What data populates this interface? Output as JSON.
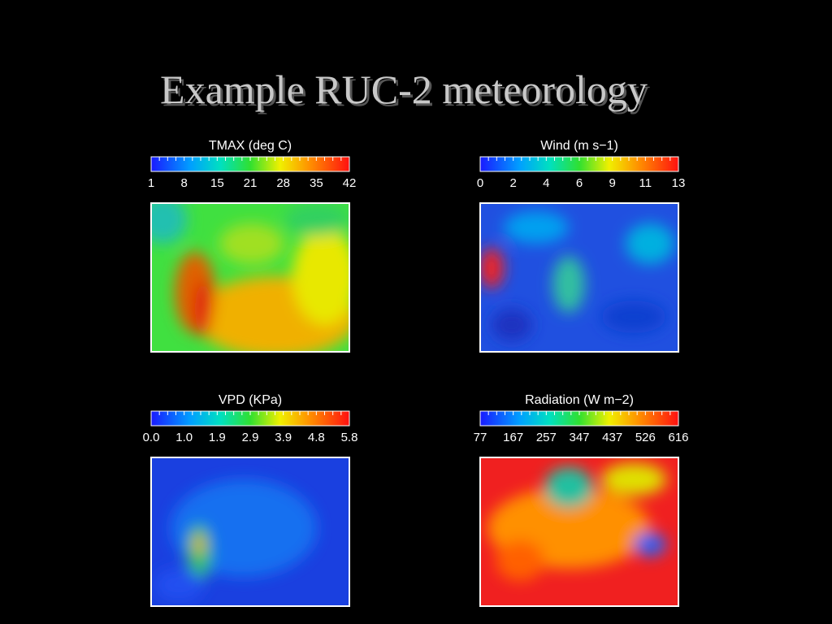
{
  "title": "Example RUC-2 meteorology",
  "panels": [
    {
      "title": "TMAX (deg C)",
      "colorbar_labels": [
        "1",
        "8",
        "15",
        "21",
        "28",
        "35",
        "42"
      ]
    },
    {
      "title": "Wind (m s−1)",
      "colorbar_labels": [
        "0",
        "2",
        "4",
        "6",
        "9",
        "11",
        "13"
      ]
    },
    {
      "title": "VPD (KPa)",
      "colorbar_labels": [
        "0.0",
        "1.0",
        "1.9",
        "2.9",
        "3.9",
        "4.8",
        "5.8"
      ]
    },
    {
      "title": "Radiation (W m−2)",
      "colorbar_labels": [
        "77",
        "167",
        "257",
        "347",
        "437",
        "526",
        "616"
      ]
    }
  ]
}
